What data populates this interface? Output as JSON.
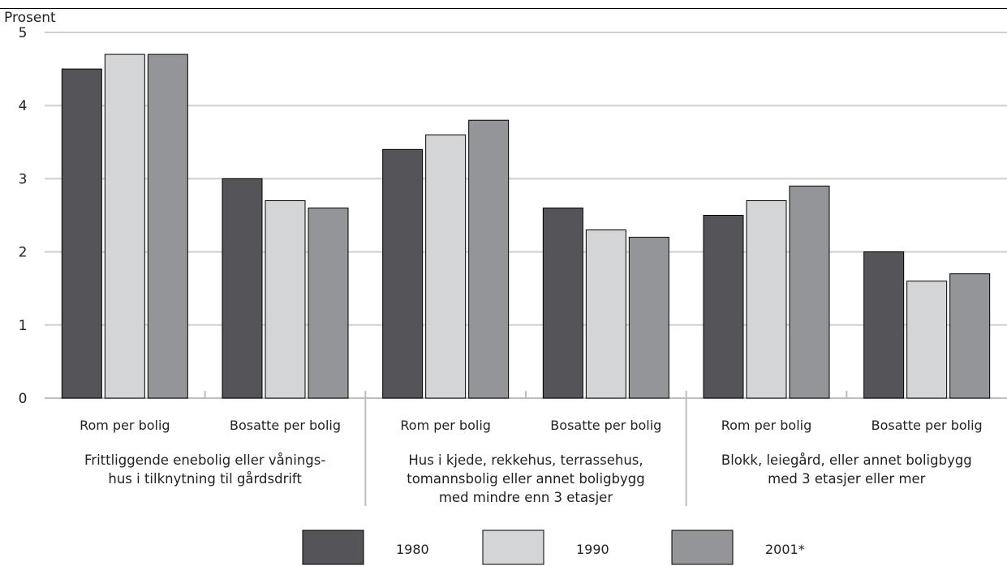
{
  "chart_data": {
    "type": "bar",
    "ylabel": "Prosent",
    "ylim": [
      0,
      5
    ],
    "yticks": [
      "0",
      "1",
      "2",
      "3",
      "4",
      "5"
    ],
    "grid": true,
    "legend_position": "bottom",
    "categories": [
      "Rom per bolig",
      "Bosatte per bolig",
      "Rom per bolig",
      "Bosatte per bolig",
      "Rom per bolig",
      "Bosatte per bolig"
    ],
    "groups": [
      "Frittliggende enebolig eller vånings-\nhus i tilknytning til gårdsdrift",
      "Hus i kjede, rekkehus, terrassehus,\ntomannsbolig eller annet boligbygg\nmed mindre enn 3 etasjer",
      "Blokk, leiegård, eller annet boligbygg\nmed 3 etasjer eller mer"
    ],
    "series": [
      {
        "name": "1980",
        "color": "#555559",
        "values": [
          4.5,
          3.0,
          3.4,
          2.6,
          2.5,
          2.0
        ]
      },
      {
        "name": "1990",
        "color": "#d4d5d7",
        "values": [
          4.7,
          2.7,
          3.6,
          2.3,
          2.7,
          1.6
        ]
      },
      {
        "name": "2001*",
        "color": "#939599",
        "values": [
          4.7,
          2.6,
          3.8,
          2.2,
          2.9,
          1.7
        ]
      }
    ]
  }
}
